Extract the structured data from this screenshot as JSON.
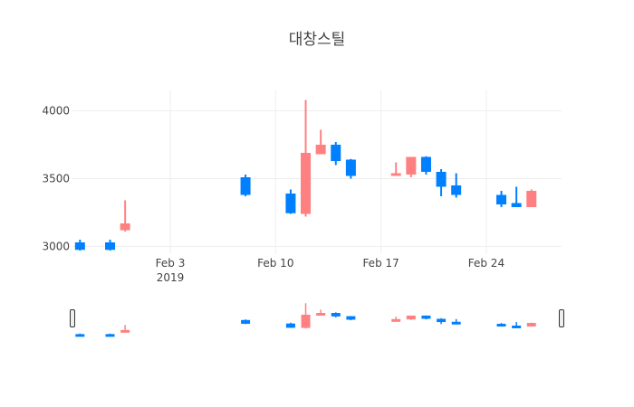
{
  "chart_data": {
    "type": "candlestick",
    "title": "대창스틸",
    "xlabel": "",
    "ylabel": "",
    "x_range": [
      "2019-01-28",
      "2019-03-01"
    ],
    "ylim": [
      2950,
      4150
    ],
    "y_ticks": [
      3000,
      3500,
      4000
    ],
    "x_ticks": [
      {
        "date": "2019-02-03",
        "label": "Feb 3",
        "sublabel": "2019"
      },
      {
        "date": "2019-02-10",
        "label": "Feb 10",
        "sublabel": ""
      },
      {
        "date": "2019-02-17",
        "label": "Feb 17",
        "sublabel": ""
      },
      {
        "date": "2019-02-24",
        "label": "Feb 24",
        "sublabel": ""
      }
    ],
    "grid": true,
    "increasing_color": "#ff8080",
    "decreasing_color": "#0080ff",
    "rangeslider": true,
    "candles": [
      {
        "date": "2019-01-28",
        "open": 3030,
        "high": 3050,
        "low": 2970,
        "close": 2975
      },
      {
        "date": "2019-01-30",
        "open": 3030,
        "high": 3050,
        "low": 2970,
        "close": 2975
      },
      {
        "date": "2019-01-31",
        "open": 3120,
        "high": 3340,
        "low": 3110,
        "close": 3170
      },
      {
        "date": "2019-02-08",
        "open": 3510,
        "high": 3530,
        "low": 3370,
        "close": 3380
      },
      {
        "date": "2019-02-11",
        "open": 3390,
        "high": 3420,
        "low": 3240,
        "close": 3245
      },
      {
        "date": "2019-02-12",
        "open": 3240,
        "high": 4080,
        "low": 3220,
        "close": 3690
      },
      {
        "date": "2019-02-13",
        "open": 3680,
        "high": 3860,
        "low": 3680,
        "close": 3750
      },
      {
        "date": "2019-02-14",
        "open": 3750,
        "high": 3770,
        "low": 3600,
        "close": 3630
      },
      {
        "date": "2019-02-15",
        "open": 3640,
        "high": 3645,
        "low": 3500,
        "close": 3520
      },
      {
        "date": "2019-02-18",
        "open": 3520,
        "high": 3620,
        "low": 3520,
        "close": 3540
      },
      {
        "date": "2019-02-19",
        "open": 3530,
        "high": 3660,
        "low": 3510,
        "close": 3660
      },
      {
        "date": "2019-02-20",
        "open": 3660,
        "high": 3665,
        "low": 3530,
        "close": 3550
      },
      {
        "date": "2019-02-21",
        "open": 3550,
        "high": 3570,
        "low": 3370,
        "close": 3440
      },
      {
        "date": "2019-02-22",
        "open": 3450,
        "high": 3540,
        "low": 3360,
        "close": 3380
      },
      {
        "date": "2019-02-25",
        "open": 3380,
        "high": 3410,
        "low": 3290,
        "close": 3310
      },
      {
        "date": "2019-02-26",
        "open": 3320,
        "high": 3440,
        "low": 3290,
        "close": 3290
      },
      {
        "date": "2019-02-27",
        "open": 3290,
        "high": 3420,
        "low": 3290,
        "close": 3410
      }
    ]
  }
}
